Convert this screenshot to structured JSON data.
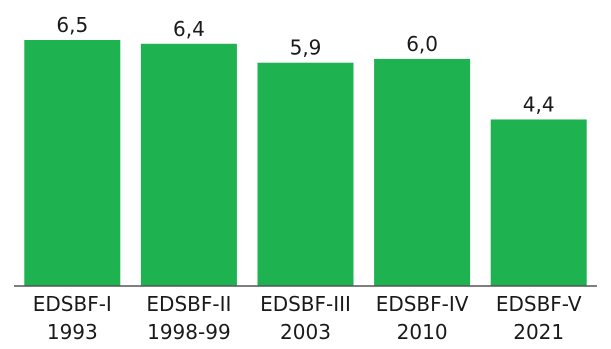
{
  "chart_data": {
    "type": "bar",
    "title": "",
    "xlabel": "",
    "ylabel": "",
    "ylim": [
      0,
      6.5
    ],
    "grid": false,
    "legend": "none",
    "bar_color": "#1fb251",
    "categories": [
      [
        "EDSBF-I",
        "1993"
      ],
      [
        "EDSBF-II",
        "1998-99"
      ],
      [
        "EDSBF-III",
        "2003"
      ],
      [
        "EDSBF-IV",
        "2010"
      ],
      [
        "EDSBF-V",
        "2021"
      ]
    ],
    "values": [
      6.5,
      6.4,
      5.9,
      6.0,
      4.4
    ],
    "value_labels": [
      "6,5",
      "6,4",
      "5,9",
      "6,0",
      "4,4"
    ]
  }
}
